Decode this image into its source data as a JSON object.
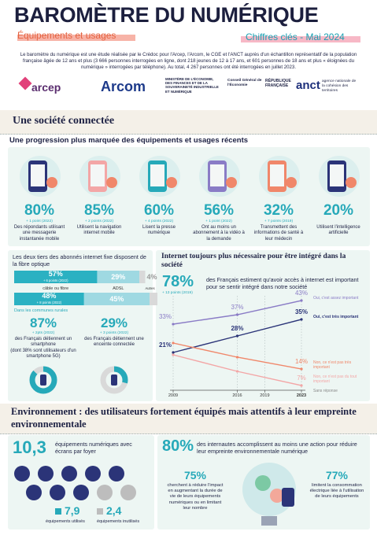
{
  "header": {
    "title": "BAROMÈTRE DU NUMÉRIQUE",
    "subtitle": "Équipements et usages",
    "edition": "Chiffres clés - Mai 2024",
    "intro": "Le baromètre du numérique est une étude réalisée par le Crédoc pour l'Arcep, l'Arcom, le CGE et l'ANCT auprès d'un échantillon représentatif de la population française âgée de 12 ans et plus (3 666 personnes interrogées en ligne, dont 218 jeunes de 12 à 17 ans, et 601 personnes de 18 ans et plus « éloignées du numérique » interrogées par téléphone). Au total, 4 267 personnes ont été interrogées en juillet 2023."
  },
  "logos": [
    "arcep",
    "Arcom",
    "MINISTÈRE DE L'ÉCONOMIE, DES FINANCES ET DE LA SOUVERAINETÉ INDUSTRIELLE ET NUMÉRIQUE",
    "Conseil Général de l'Économie",
    "RÉPUBLIQUE FRANÇAISE",
    "anct",
    "agence nationale de la cohésion des territoires"
  ],
  "society": {
    "title": "Une société connectée",
    "subtitle": "Une progression plus marquée des équipements et usages récents",
    "stats": [
      {
        "value": "80%",
        "change": "+ 1 point (2022)",
        "label": "Des répondants utilisant une messagerie instantanée mobile"
      },
      {
        "value": "85%",
        "change": "+ 2 points (2022)",
        "label": "Utilisent la navigation internet mobile"
      },
      {
        "value": "60%",
        "change": "+ 4 points (2022)",
        "label": "Lisent la presse numérique"
      },
      {
        "value": "56%",
        "change": "+ 1 point (2022)",
        "label": "Ont au moins un abonnement à la vidéo à la demande"
      },
      {
        "value": "32%",
        "change": "+ 7 points (2019)",
        "label": "Transmettent des informations de santé à leur médecin"
      },
      {
        "value": "20%",
        "label": "Utilisent l'intelligence artificielle"
      }
    ]
  },
  "fiber": {
    "title": "Les deux tiers des abonnés internet fixe disposent de la fibre optique",
    "segments": [
      "câble ou fibre",
      "ADSL",
      "Autres"
    ],
    "colors": [
      "#2bb1c2",
      "#9fd9e2",
      "#d9d9d9"
    ],
    "rows": [
      {
        "values": [
          57,
          29,
          4
        ],
        "value_labels": [
          "57%",
          "29%",
          "4%"
        ],
        "change": "+ 6 points (2022)"
      },
      {
        "values": [
          48,
          45,
          7
        ],
        "value_labels": [
          "48%",
          "45%",
          "7%"
        ],
        "change": "+ 8 points (2022)",
        "label": "Dans les communes rurales"
      }
    ],
    "smartphone": {
      "value": 87,
      "value_label": "87%",
      "change": "+ 2pts (2022)",
      "label": "des Français détiennent un smartphone",
      "note": "(dont 38% sont utilisateurs d'un smartphone 5G)"
    },
    "speaker": {
      "value": 29,
      "value_label": "29%",
      "change": "+ 3 points (2022)",
      "label": "des Français détiennent une enceinte connectée"
    }
  },
  "chart_data": {
    "type": "line",
    "title": "Internet toujours plus nécessaire pour être intégré dans la société",
    "headline": "78%",
    "headline_change": "+ 13 points (2019)",
    "headline_text": "des Français estiment qu'avoir accès à internet est important pour se sentir intégré dans notre société",
    "x": [
      2009,
      2016,
      2023
    ],
    "xlim": [
      2009,
      2023
    ],
    "xticks": [
      2009,
      2016,
      2019,
      2023
    ],
    "ylim": [
      5,
      45
    ],
    "grid": true,
    "series": [
      {
        "name": "Oui, c'est assez important",
        "color": "#8a7cc6",
        "values": [
          33,
          37,
          43
        ],
        "value_labels": [
          "33%",
          "37%",
          "43%"
        ]
      },
      {
        "name": "Oui, c'est très important",
        "color": "#2b3478",
        "values": [
          21,
          28,
          35
        ],
        "value_labels": [
          "21%",
          "28%",
          "35%"
        ]
      },
      {
        "name": "Non, ce n'est pas très important",
        "color": "#f0876a",
        "values": [
          25,
          19,
          14
        ],
        "value_labels": [
          null,
          null,
          "14%"
        ]
      },
      {
        "name": "Non, ce n'est pas du tout important",
        "color": "#f3a6a6",
        "values": [
          20,
          13,
          7
        ],
        "value_labels": [
          null,
          null,
          "7%"
        ]
      }
    ],
    "no_answer": "Sans réponse"
  },
  "devices": {
    "title": "Environnement : des utilisateurs fortement équipés mais attentifs à leur empreinte environnementale",
    "total": "10,3",
    "total_label": "équipements numériques avec écrans par foyer",
    "used": "7,9",
    "used_label": "équipements utilisés",
    "unused": "2,4",
    "unused_label": "équipements inutilisés"
  },
  "environment": {
    "value": "80%",
    "label": "des internautes accomplissent au moins une action pour réduire leur empreinte environnementale numérique",
    "actions": [
      {
        "value": "75%",
        "label": "cherchent à réduire l'impact en augmentant la durée de vie de leurs équipements numériques ou en limitant leur nombre"
      },
      {
        "value": "77%",
        "label": "limitent la consommation électrique liée à l'utilisation de leurs équipements"
      }
    ]
  }
}
